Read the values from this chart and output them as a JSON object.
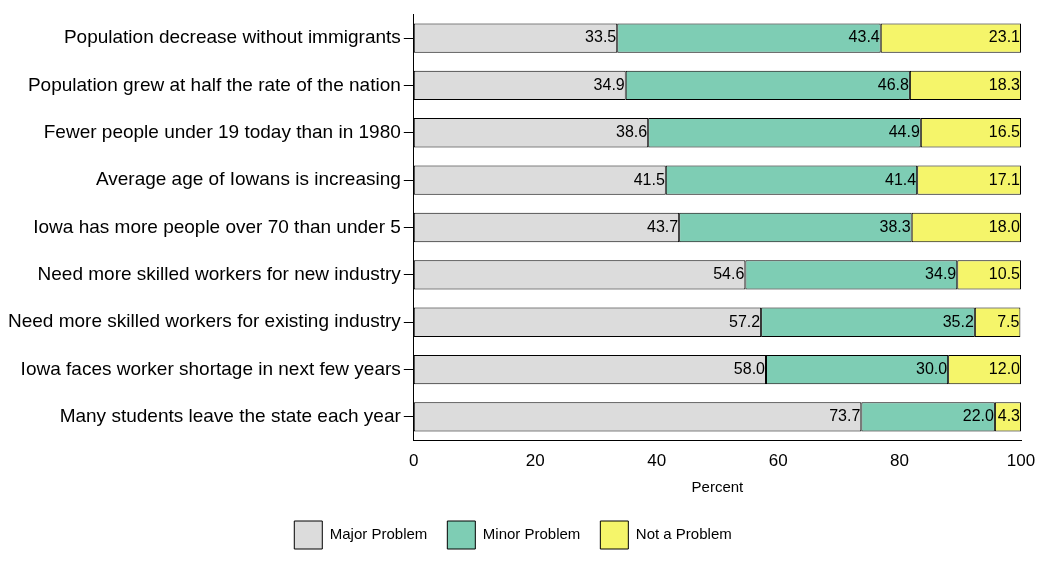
{
  "chart_data": {
    "type": "bar",
    "orientation": "horizontal",
    "stacked": true,
    "xlabel": "Percent",
    "categories": [
      "Population decrease without immigrants",
      "Population grew at half the rate of the nation",
      "Fewer people under 19 today than in 1980",
      "Average age of Iowans is increasing",
      "Iowa has more people over 70 than under 5",
      "Need more skilled workers for new industry",
      "Need more skilled workers for existing industry",
      "Iowa faces worker shortage in next few years",
      "Many students leave the state each year"
    ],
    "series": [
      {
        "name": "Major Problem",
        "color": "#dcdcdc",
        "values": [
          33.5,
          34.9,
          38.6,
          41.5,
          43.7,
          54.6,
          57.2,
          58.0,
          73.7
        ],
        "value_labels": [
          "33.5",
          "34.9",
          "38.6",
          "41.5",
          "43.7",
          "54.6",
          "57.2",
          "58.0",
          "73.7"
        ]
      },
      {
        "name": "Minor Problem",
        "color": "#7ecdb4",
        "values": [
          43.4,
          46.8,
          44.9,
          41.4,
          38.3,
          34.9,
          35.2,
          30.0,
          22.0
        ],
        "value_labels": [
          "43.4",
          "46.8",
          "44.9",
          "41.4",
          "38.3",
          "34.9",
          "35.2",
          "30.0",
          "22.0"
        ]
      },
      {
        "name": "Not a Problem",
        "color": "#f5f56a",
        "values": [
          23.1,
          18.3,
          16.5,
          17.1,
          18.0,
          10.5,
          7.5,
          12.0,
          4.3
        ],
        "value_labels": [
          "23.1",
          "18.3",
          "16.5",
          "17.1",
          "18.0",
          "10.5",
          "7.5",
          "12.0",
          "4.3"
        ]
      }
    ],
    "xlim": [
      0,
      100
    ],
    "xticks": [
      0,
      20,
      40,
      60,
      80,
      100
    ],
    "grid": false,
    "legend": "bottom"
  }
}
